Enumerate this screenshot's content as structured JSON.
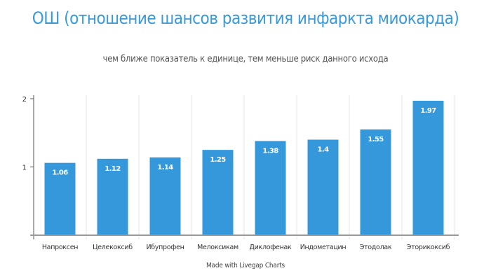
{
  "chart_data": {
    "type": "bar",
    "title": "ОШ (отношение шансов развития инфаркта миокарда)",
    "subtitle": "чем ближе показатель к единице, тем меньше риск данного исхода",
    "categories": [
      "Напроксен",
      "Целекоксиб",
      "Ибупрофен",
      "Мелоксикам",
      "Диклофенак",
      "Индометацин",
      "Этодолак",
      "Эторикоксиб"
    ],
    "values": [
      1.06,
      1.12,
      1.14,
      1.25,
      1.38,
      1.4,
      1.55,
      1.97
    ],
    "data_labels": [
      "1.06",
      "1.12",
      "1.14",
      "1.25",
      "1.38",
      "1.4",
      "1.55",
      "1.97"
    ],
    "ylim": [
      0,
      2
    ],
    "yticks": [
      "1",
      "2"
    ],
    "grid": "vertical",
    "bar_color": "#3498db",
    "title_color": "#3a9ad9"
  },
  "footer": "Made with Livegap Charts"
}
